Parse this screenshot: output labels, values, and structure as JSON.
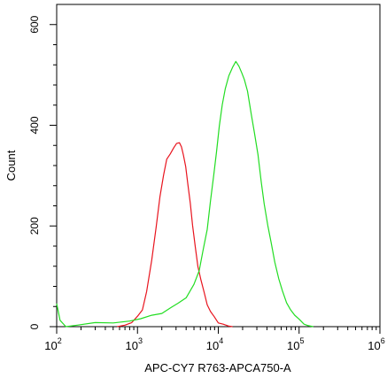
{
  "chart_data": {
    "type": "line",
    "title": "",
    "xlabel": "APC-CY7 R763-APCA750-A",
    "ylabel": "Count",
    "xscale": "log",
    "xlim": [
      100,
      1000000
    ],
    "ylim": [
      0,
      640
    ],
    "grid": false,
    "legend": "none",
    "x_ticks": [
      {
        "value": 100,
        "base": "10",
        "exp": "2"
      },
      {
        "value": 1000,
        "base": "10",
        "exp": "3"
      },
      {
        "value": 10000,
        "base": "10",
        "exp": "4"
      },
      {
        "value": 100000,
        "base": "10",
        "exp": "5"
      },
      {
        "value": 1000000,
        "base": "10",
        "exp": "6"
      }
    ],
    "y_ticks": [
      {
        "value": 0,
        "label": "0"
      },
      {
        "value": 200,
        "label": "200"
      },
      {
        "value": 400,
        "label": "400"
      },
      {
        "value": 600,
        "label": "600"
      }
    ],
    "series": [
      {
        "color": "#e8141e",
        "points": [
          [
            560,
            0
          ],
          [
            700,
            3
          ],
          [
            850,
            8
          ],
          [
            1000,
            18
          ],
          [
            1150,
            35
          ],
          [
            1300,
            70
          ],
          [
            1500,
            130
          ],
          [
            1700,
            200
          ],
          [
            1900,
            260
          ],
          [
            2100,
            300
          ],
          [
            2300,
            330
          ],
          [
            2550,
            345
          ],
          [
            2800,
            355
          ],
          [
            3050,
            362
          ],
          [
            3300,
            368
          ],
          [
            3500,
            358
          ],
          [
            3700,
            340
          ],
          [
            3950,
            315
          ],
          [
            4200,
            285
          ],
          [
            4500,
            245
          ],
          [
            4800,
            200
          ],
          [
            5200,
            160
          ],
          [
            5600,
            120
          ],
          [
            6100,
            92
          ],
          [
            6700,
            65
          ],
          [
            7300,
            45
          ],
          [
            8000,
            30
          ],
          [
            8900,
            18
          ],
          [
            10000,
            10
          ],
          [
            11500,
            5
          ],
          [
            13500,
            1
          ],
          [
            15000,
            0
          ]
        ]
      },
      {
        "color": "#22dd22",
        "points": [
          [
            100,
            45
          ],
          [
            110,
            10
          ],
          [
            130,
            0
          ],
          [
            180,
            3
          ],
          [
            300,
            8
          ],
          [
            500,
            10
          ],
          [
            800,
            12
          ],
          [
            1100,
            15
          ],
          [
            1500,
            20
          ],
          [
            2000,
            28
          ],
          [
            2600,
            38
          ],
          [
            3200,
            45
          ],
          [
            4000,
            60
          ],
          [
            5000,
            85
          ],
          [
            5800,
            110
          ],
          [
            6500,
            150
          ],
          [
            7300,
            195
          ],
          [
            8000,
            250
          ],
          [
            8800,
            300
          ],
          [
            9500,
            350
          ],
          [
            10300,
            400
          ],
          [
            11200,
            440
          ],
          [
            12200,
            470
          ],
          [
            13500,
            500
          ],
          [
            15000,
            515
          ],
          [
            16500,
            525
          ],
          [
            18000,
            520
          ],
          [
            19500,
            505
          ],
          [
            21000,
            490
          ],
          [
            23000,
            465
          ],
          [
            25500,
            425
          ],
          [
            28000,
            385
          ],
          [
            31000,
            340
          ],
          [
            34000,
            290
          ],
          [
            37000,
            245
          ],
          [
            41000,
            200
          ],
          [
            45000,
            165
          ],
          [
            50000,
            130
          ],
          [
            56000,
            95
          ],
          [
            62000,
            70
          ],
          [
            70000,
            50
          ],
          [
            78000,
            35
          ],
          [
            88000,
            22
          ],
          [
            100000,
            12
          ],
          [
            115000,
            5
          ],
          [
            130000,
            2
          ],
          [
            150000,
            0
          ]
        ]
      }
    ]
  }
}
